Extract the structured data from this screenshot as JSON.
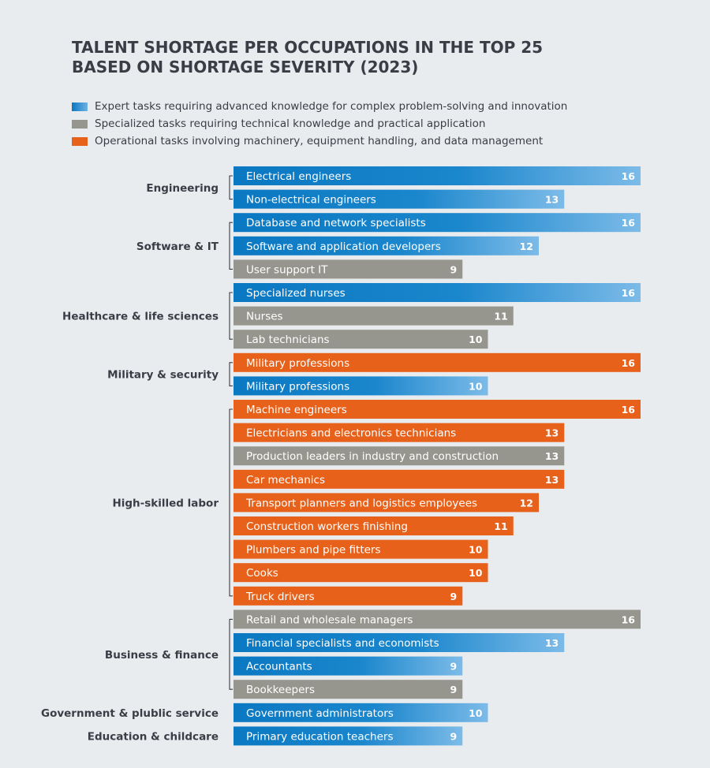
{
  "chart_data": {
    "type": "bar",
    "orientation": "horizontal",
    "title": "TALENT SHORTAGE PER OCCUPATIONS IN THE TOP 25 BASED ON SHORTAGE SEVERITY (2023)",
    "title_lines": [
      "TALENT SHORTAGE PER OCCUPATIONS IN THE TOP 25",
      "BASED ON SHORTAGE SEVERITY (2023)"
    ],
    "xlim": [
      0,
      16
    ],
    "categories_legend": [
      {
        "key": "expert",
        "label": "Expert tasks requiring advanced knowledge for complex problem-solving and innovation",
        "color": "#0a78c2"
      },
      {
        "key": "specialized",
        "label": "Specialized tasks requiring technical knowledge and practical application",
        "color": "#97968e"
      },
      {
        "key": "operational",
        "label": "Operational tasks involving machinery, equipment handling, and data management",
        "color": "#e8611a"
      }
    ],
    "groups": [
      {
        "name": "Engineering",
        "bars": [
          {
            "label": "Electrical engineers",
            "value": 16,
            "category": "expert"
          },
          {
            "label": "Non-electrical engineers",
            "value": 13,
            "category": "expert"
          }
        ]
      },
      {
        "name": "Software & IT",
        "bars": [
          {
            "label": "Database and network specialists",
            "value": 16,
            "category": "expert"
          },
          {
            "label": "Software and application developers",
            "value": 12,
            "category": "expert"
          },
          {
            "label": "User support IT",
            "value": 9,
            "category": "specialized"
          }
        ]
      },
      {
        "name": "Healthcare & life sciences",
        "bars": [
          {
            "label": "Specialized nurses",
            "value": 16,
            "category": "expert"
          },
          {
            "label": "Nurses",
            "value": 11,
            "category": "specialized"
          },
          {
            "label": "Lab technicians",
            "value": 10,
            "category": "specialized"
          }
        ]
      },
      {
        "name": "Military & security",
        "bars": [
          {
            "label": "Military professions",
            "value": 16,
            "category": "operational"
          },
          {
            "label": "Military professions",
            "value": 10,
            "category": "expert"
          }
        ]
      },
      {
        "name": "High-skilled labor",
        "bars": [
          {
            "label": "Machine engineers",
            "value": 16,
            "category": "operational"
          },
          {
            "label": "Electricians and electronics technicians",
            "value": 13,
            "category": "operational"
          },
          {
            "label": "Production leaders in industry and construction",
            "value": 13,
            "category": "specialized"
          },
          {
            "label": "Car mechanics",
            "value": 13,
            "category": "operational"
          },
          {
            "label": "Transport planners and logistics employees",
            "value": 12,
            "category": "operational"
          },
          {
            "label": "Construction workers finishing",
            "value": 11,
            "category": "operational"
          },
          {
            "label": "Plumbers and pipe fitters",
            "value": 10,
            "category": "operational"
          },
          {
            "label": "Cooks",
            "value": 10,
            "category": "operational"
          },
          {
            "label": "Truck drivers",
            "value": 9,
            "category": "operational"
          }
        ]
      },
      {
        "name": "Business & finance",
        "bars": [
          {
            "label": "Retail and wholesale managers",
            "value": 16,
            "category": "specialized"
          },
          {
            "label": "Financial specialists and economists",
            "value": 13,
            "category": "expert"
          },
          {
            "label": "Accountants",
            "value": 9,
            "category": "expert"
          },
          {
            "label": "Bookkeepers",
            "value": 9,
            "category": "specialized"
          }
        ]
      },
      {
        "name": "Government & plublic service",
        "bars": [
          {
            "label": "Government administrators",
            "value": 10,
            "category": "expert"
          }
        ]
      },
      {
        "name": "Education & childcare",
        "bars": [
          {
            "label": "Primary education teachers",
            "value": 9,
            "category": "expert"
          }
        ]
      }
    ]
  }
}
